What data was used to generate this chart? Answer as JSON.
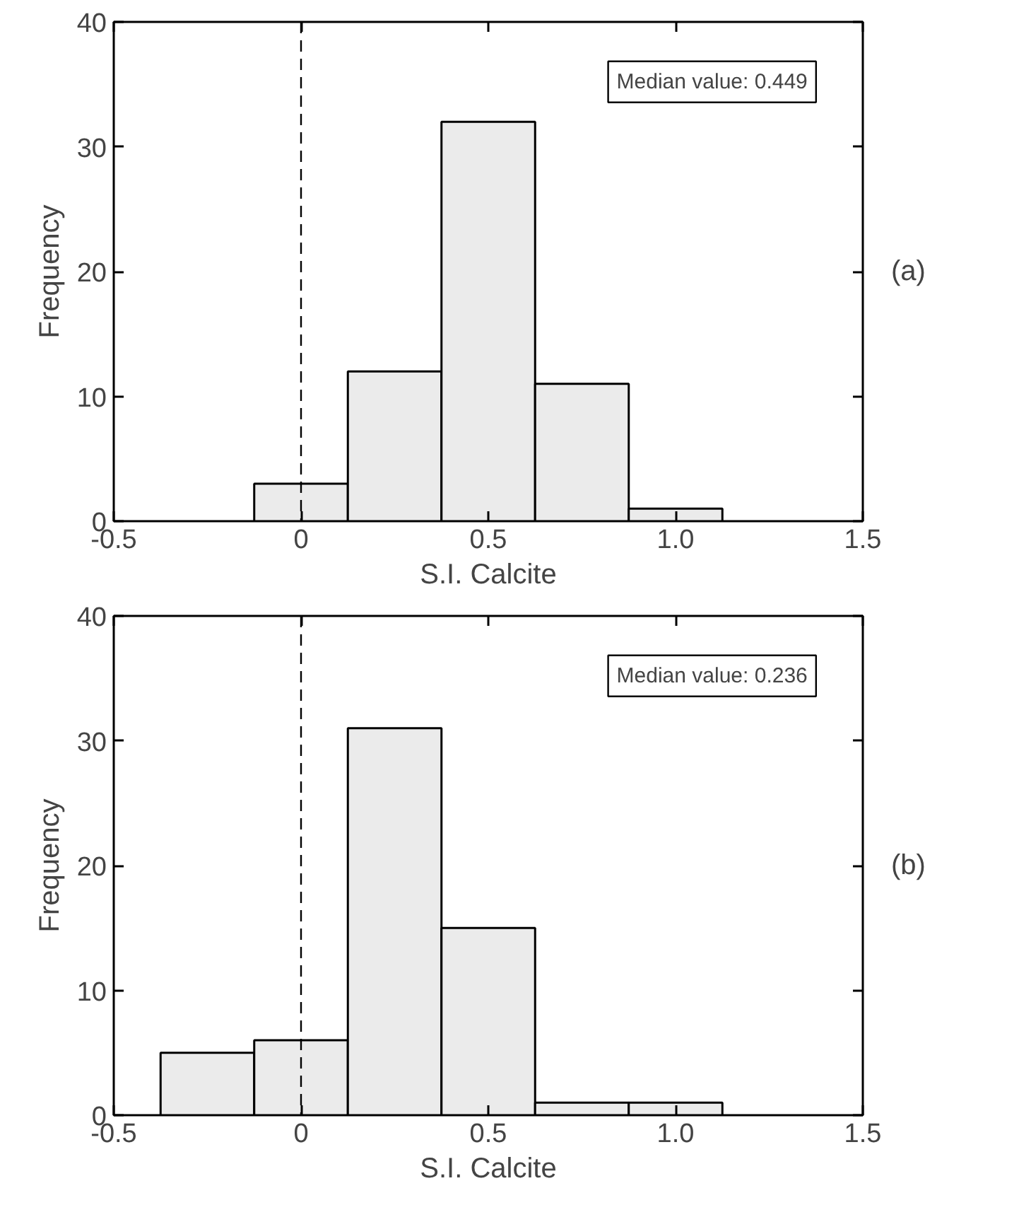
{
  "chart_data": [
    {
      "type": "histogram",
      "xlabel": "S.I. Calcite",
      "ylabel": "Frequency",
      "bins": [
        -0.125,
        0.125,
        0.375,
        0.625,
        0.875,
        1.125
      ],
      "values": [
        3,
        12,
        32,
        11,
        1
      ],
      "color": "#ebebeb",
      "xlim": [
        -0.5,
        1.5
      ],
      "ylim": [
        0,
        40
      ],
      "xticks": [
        -0.5,
        0,
        0.5,
        {
          "value": 1,
          "label": "1.0"
        },
        1.5
      ],
      "yticks": [
        0,
        10,
        20,
        30,
        40
      ],
      "grid": false,
      "ref_lines": [
        {
          "axis": "x",
          "value": 0,
          "label": null,
          "line_style": "dashed"
        }
      ],
      "annotations": [
        "Median value: 0.449",
        "(a)"
      ]
    },
    {
      "type": "histogram",
      "xlabel": "S.I. Calcite",
      "ylabel": "Frequency",
      "bins": [
        -0.375,
        -0.125,
        0.125,
        0.375,
        0.625,
        0.875,
        1.125
      ],
      "values": [
        5,
        6,
        31,
        15,
        1,
        1
      ],
      "color": "#ebebeb",
      "xlim": [
        -0.5,
        1.5
      ],
      "ylim": [
        0,
        40
      ],
      "xticks": [
        -0.5,
        0,
        0.5,
        {
          "value": 1,
          "label": "1.0"
        },
        1.5
      ],
      "yticks": [
        0,
        10,
        20,
        30,
        40
      ],
      "grid": false,
      "ref_lines": [
        {
          "axis": "x",
          "value": 0,
          "label": null,
          "line_style": "dashed"
        }
      ],
      "annotations": [
        "Median value: 0.236",
        "(b)"
      ]
    }
  ]
}
